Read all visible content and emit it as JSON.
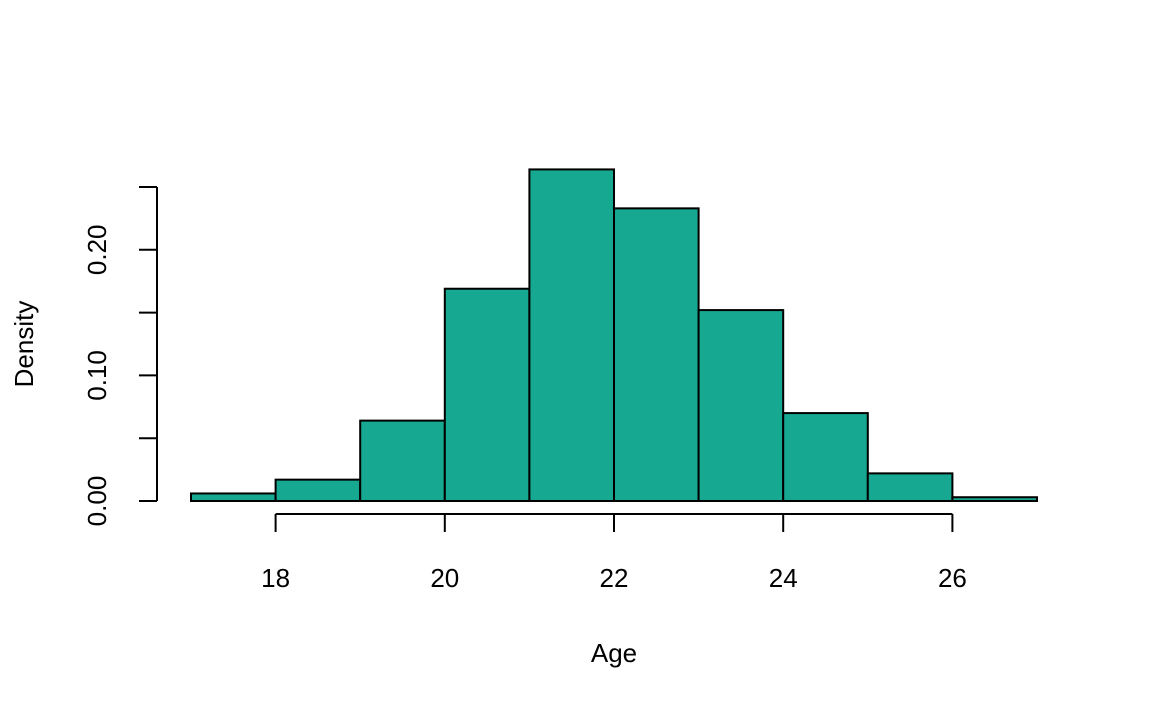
{
  "chart_data": {
    "type": "bar",
    "title": "",
    "xlabel": "Age",
    "ylabel": "Density",
    "bar_color": "#17A891",
    "bins": [
      {
        "x0": 17,
        "x1": 18,
        "value": 0.006
      },
      {
        "x0": 18,
        "x1": 19,
        "value": 0.017
      },
      {
        "x0": 19,
        "x1": 20,
        "value": 0.064
      },
      {
        "x0": 20,
        "x1": 21,
        "value": 0.169
      },
      {
        "x0": 21,
        "x1": 22,
        "value": 0.264
      },
      {
        "x0": 22,
        "x1": 23,
        "value": 0.233
      },
      {
        "x0": 23,
        "x1": 24,
        "value": 0.152
      },
      {
        "x0": 24,
        "x1": 25,
        "value": 0.07
      },
      {
        "x0": 25,
        "x1": 26,
        "value": 0.022
      },
      {
        "x0": 26,
        "x1": 27,
        "value": 0.003
      }
    ],
    "xlim": [
      17,
      27
    ],
    "ylim": [
      0,
      0.25
    ],
    "x_ticks": [
      18,
      20,
      22,
      24,
      26
    ],
    "x_tick_labels": [
      "18",
      "20",
      "22",
      "24",
      "26"
    ],
    "y_ticks": [
      0,
      0.05,
      0.1,
      0.15,
      0.2,
      0.25
    ],
    "y_tick_labels": [
      "0.00",
      "",
      "0.10",
      "",
      "0.20",
      ""
    ],
    "grid": false
  }
}
